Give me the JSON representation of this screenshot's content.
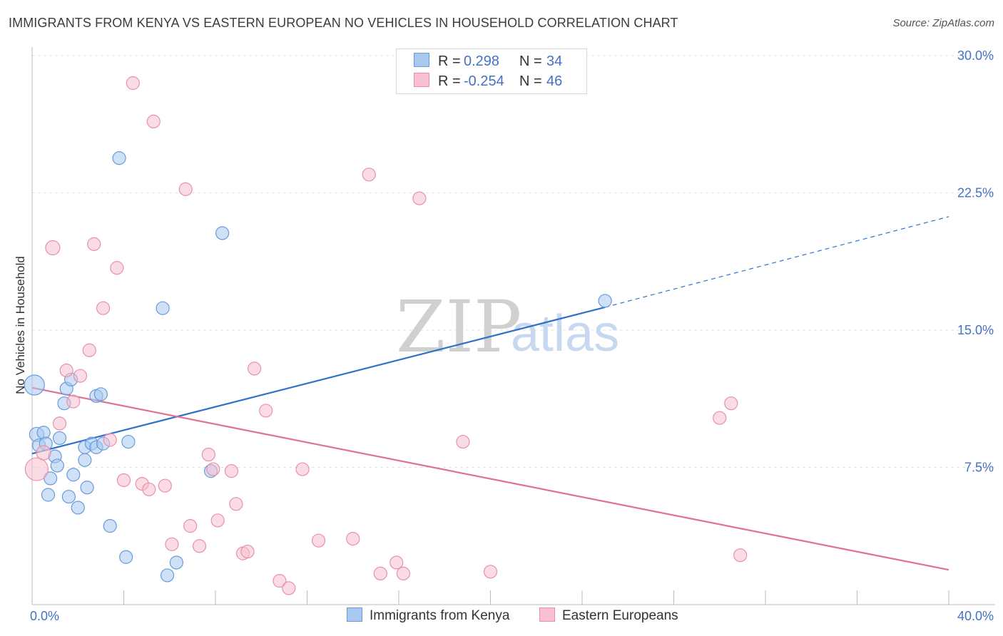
{
  "title": "IMMIGRANTS FROM KENYA VS EASTERN EUROPEAN NO VEHICLES IN HOUSEHOLD CORRELATION CHART",
  "source": "Source: ZipAtlas.com",
  "watermark": {
    "zip": "ZIP",
    "atlas": "atlas"
  },
  "legend_top": [
    {
      "r_label": "R =",
      "r_value": "0.298",
      "n_label": "N =",
      "n_value": "34",
      "color": "#a8c8f0",
      "border": "#6a9ad8"
    },
    {
      "r_label": "R =",
      "r_value": "-0.254",
      "n_label": "N =",
      "n_value": "46",
      "color": "#f8c0d0",
      "border": "#e890aa"
    }
  ],
  "legend_bottom": [
    {
      "label": "Immigrants from Kenya",
      "color": "#a8c8f0",
      "border": "#6a9ad8"
    },
    {
      "label": "Eastern Europeans",
      "color": "#f8c0d0",
      "border": "#e890aa"
    }
  ],
  "chart_data": {
    "type": "scatter",
    "title": "IMMIGRANTS FROM KENYA VS EASTERN EUROPEAN NO VEHICLES IN HOUSEHOLD CORRELATION CHART",
    "xlabel": "",
    "ylabel": "No Vehicles in Household",
    "xlim": [
      0,
      40
    ],
    "ylim": [
      0,
      30
    ],
    "x_tick_labels": [
      "0.0%",
      "40.0%"
    ],
    "y_ticks": [
      7.5,
      15.0,
      22.5,
      30.0
    ],
    "y_tick_labels": [
      "7.5%",
      "15.0%",
      "22.5%",
      "30.0%"
    ],
    "grid": true,
    "series": [
      {
        "name": "Immigrants from Kenya",
        "color": "#a8c8f0",
        "stroke": "#6a9ad8",
        "line_color": "#2f72c8",
        "trend": {
          "x0": 0,
          "y0": 8.25,
          "x1": 25,
          "y1": 16.25,
          "dash_to_x": 40,
          "dash_to_y": 21.2
        },
        "points": [
          [
            0.1,
            12.0,
            14
          ],
          [
            0.2,
            9.3,
            10
          ],
          [
            0.3,
            8.7,
            9
          ],
          [
            0.5,
            9.4,
            9
          ],
          [
            0.6,
            8.8,
            9
          ],
          [
            0.7,
            6.0,
            9
          ],
          [
            0.8,
            6.9,
            9
          ],
          [
            1.0,
            8.1,
            9
          ],
          [
            1.1,
            7.6,
            9
          ],
          [
            1.2,
            9.1,
            9
          ],
          [
            1.4,
            11.0,
            9
          ],
          [
            1.5,
            11.8,
            9
          ],
          [
            1.6,
            5.9,
            9
          ],
          [
            1.7,
            12.3,
            9
          ],
          [
            1.8,
            7.1,
            9
          ],
          [
            2.0,
            5.3,
            9
          ],
          [
            2.3,
            8.6,
            9
          ],
          [
            2.3,
            7.9,
            9
          ],
          [
            2.4,
            6.4,
            9
          ],
          [
            2.6,
            8.8,
            9
          ],
          [
            2.8,
            11.4,
            9
          ],
          [
            2.8,
            8.6,
            9
          ],
          [
            3.0,
            11.5,
            9
          ],
          [
            3.1,
            8.8,
            9
          ],
          [
            3.4,
            4.3,
            9
          ],
          [
            3.8,
            24.4,
            9
          ],
          [
            4.1,
            2.6,
            9
          ],
          [
            4.2,
            8.9,
            9
          ],
          [
            5.7,
            16.2,
            9
          ],
          [
            5.9,
            1.6,
            9
          ],
          [
            6.3,
            2.3,
            9
          ],
          [
            7.8,
            7.3,
            9
          ],
          [
            8.3,
            20.3,
            9
          ],
          [
            25.0,
            16.6,
            9
          ]
        ]
      },
      {
        "name": "Eastern Europeans",
        "color": "#f8c0d0",
        "stroke": "#e890aa",
        "line_color": "#e0709a",
        "trend": {
          "x0": 0,
          "y0": 11.85,
          "x1": 40,
          "y1": 1.9
        },
        "points": [
          [
            0.2,
            7.4,
            16
          ],
          [
            0.5,
            8.3,
            10
          ],
          [
            1.2,
            9.9,
            9
          ],
          [
            0.9,
            19.5,
            10
          ],
          [
            1.5,
            12.8,
            9
          ],
          [
            1.8,
            11.1,
            9
          ],
          [
            2.1,
            12.5,
            9
          ],
          [
            2.5,
            13.9,
            9
          ],
          [
            2.7,
            19.7,
            9
          ],
          [
            3.1,
            16.2,
            9
          ],
          [
            3.4,
            9.0,
            9
          ],
          [
            3.7,
            18.4,
            9
          ],
          [
            4.0,
            6.8,
            9
          ],
          [
            4.4,
            28.5,
            9
          ],
          [
            4.8,
            6.6,
            9
          ],
          [
            5.1,
            6.3,
            9
          ],
          [
            5.3,
            26.4,
            9
          ],
          [
            5.8,
            6.5,
            9
          ],
          [
            6.1,
            3.3,
            9
          ],
          [
            6.7,
            22.7,
            9
          ],
          [
            6.9,
            4.3,
            9
          ],
          [
            7.3,
            3.2,
            9
          ],
          [
            7.7,
            8.2,
            9
          ],
          [
            7.9,
            7.4,
            9
          ],
          [
            8.1,
            4.6,
            9
          ],
          [
            8.7,
            7.3,
            9
          ],
          [
            8.9,
            5.5,
            9
          ],
          [
            9.2,
            2.8,
            9
          ],
          [
            9.4,
            2.9,
            9
          ],
          [
            9.7,
            12.9,
            9
          ],
          [
            10.2,
            10.6,
            9
          ],
          [
            10.8,
            1.3,
            9
          ],
          [
            11.2,
            0.9,
            9
          ],
          [
            11.8,
            7.4,
            9
          ],
          [
            12.5,
            3.5,
            9
          ],
          [
            14.0,
            3.6,
            9
          ],
          [
            14.7,
            23.5,
            9
          ],
          [
            15.2,
            1.7,
            9
          ],
          [
            15.9,
            2.3,
            9
          ],
          [
            16.2,
            1.7,
            9
          ],
          [
            16.9,
            22.2,
            9
          ],
          [
            18.8,
            8.9,
            9
          ],
          [
            20.0,
            1.8,
            9
          ],
          [
            30.0,
            10.2,
            9
          ],
          [
            30.5,
            11.0,
            9
          ],
          [
            30.9,
            2.7,
            9
          ]
        ]
      }
    ]
  }
}
